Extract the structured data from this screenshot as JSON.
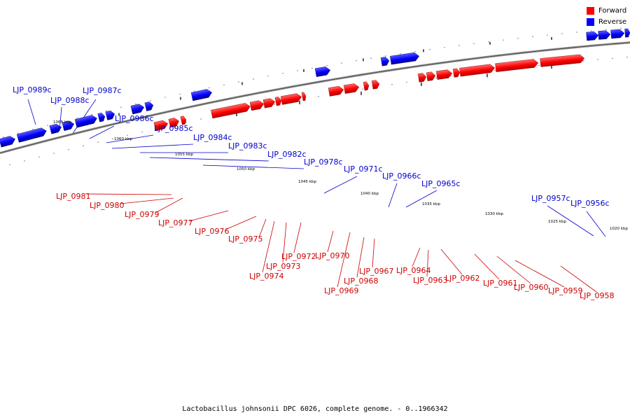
{
  "legend": [
    {
      "label": "Forward",
      "color": "#ff0000"
    },
    {
      "label": "Reverse",
      "color": "#0000ff"
    }
  ],
  "caption": "Lactobacillus johnsonii DPC 6026, complete genome. - 0..1966342",
  "kbp_labels": [
    "1065 kbp",
    "1060 kbp",
    "1055 kbp",
    "1050 kbp",
    "1045 kbp",
    "1040 kbp",
    "1035 kbp",
    "1030 kbp",
    "1025 kbp",
    "1020 kbp"
  ],
  "reverse_genes": [
    "LJP_0989c",
    "LJP_0988c",
    "LJP_0987c",
    "LJP_0986c",
    "LJP_0985c",
    "LJP_0984c",
    "LJP_0983c",
    "LJP_0982c",
    "LJP_0978c",
    "LJP_0971c",
    "LJP_0966c",
    "LJP_0965c",
    "LJP_0957c",
    "LJP_0956c"
  ],
  "forward_genes": [
    "LJP_0981",
    "LJP_0980",
    "LJP_0979",
    "LJP_0977",
    "LJP_0976",
    "LJP_0975",
    "LJP_0974",
    "LJP_0973",
    "LJP_0972",
    "LJP_0970",
    "LJP_0969",
    "LJP_0968",
    "LJP_0967",
    "LJP_0964",
    "LJP_0963",
    "LJP_0962",
    "LJP_0961",
    "LJP_0960",
    "LJP_0959",
    "LJP_0958"
  ]
}
